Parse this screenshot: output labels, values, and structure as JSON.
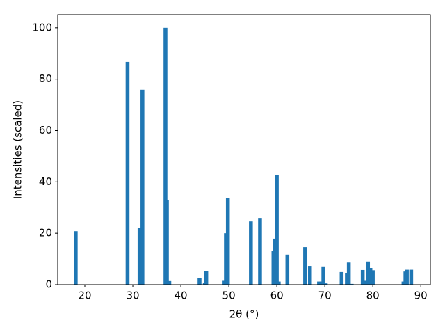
{
  "chart_data": {
    "type": "bar",
    "xlabel": "2θ (°)",
    "ylabel": "Intensities (scaled)",
    "x": [
      18.1,
      28.9,
      31.4,
      32.0,
      36.8,
      37.1,
      37.6,
      43.9,
      45.0,
      45.3,
      49.1,
      49.4,
      49.8,
      54.6,
      56.5,
      59.3,
      59.6,
      60.0,
      60.4,
      62.2,
      65.9,
      66.9,
      68.8,
      69.3,
      69.7,
      70.2,
      73.5,
      74.6,
      75.0,
      75.6,
      77.9,
      78.3,
      79.0,
      79.5,
      80.0,
      86.4,
      86.8,
      87.1,
      88.0
    ],
    "values": [
      20.8,
      86.7,
      22.2,
      75.9,
      100,
      32.8,
      1.4,
      2.7,
      0.8,
      5.2,
      1.5,
      20,
      33.6,
      24.6,
      25.7,
      13,
      17.9,
      42.8,
      1.2,
      11.7,
      14.6,
      7.3,
      1.2,
      1.2,
      7.1,
      0.5,
      4.9,
      4.4,
      8.6,
      0.3,
      5.7,
      1.5,
      9.0,
      6.5,
      5.6,
      1.2,
      5.1,
      5.8,
      5.8
    ],
    "bar_width": 0.8,
    "color": "#1f77b4",
    "xlim": [
      14.35,
      92.0
    ],
    "xticks": [
      20,
      30,
      40,
      50,
      60,
      70,
      80,
      90
    ],
    "ylim": [
      0,
      105.1
    ],
    "yticks": [
      0,
      20,
      40,
      60,
      80,
      100
    ]
  }
}
